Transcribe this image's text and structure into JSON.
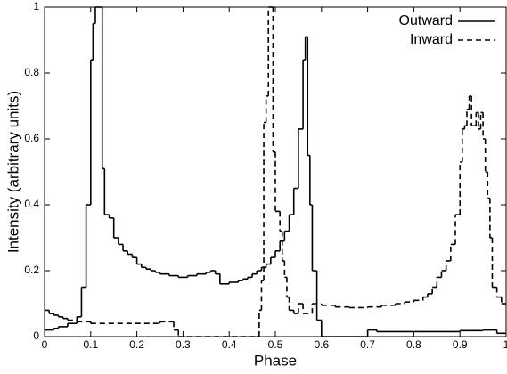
{
  "chart_data": {
    "type": "line",
    "step": true,
    "xlabel": "Phase",
    "ylabel": "Intensity (arbitrary units)",
    "xlim": [
      0,
      1
    ],
    "ylim": [
      0,
      1
    ],
    "xticks": [
      0,
      0.1,
      0.2,
      0.3,
      0.4,
      0.5,
      0.6,
      0.7,
      0.8,
      0.9,
      1
    ],
    "yticks": [
      0,
      0.2,
      0.4,
      0.6,
      0.8,
      1
    ],
    "legend": "upper-right",
    "series": [
      {
        "name": "Outward",
        "color": "#000000",
        "linestyle": "solid",
        "x": [
          0,
          0.02,
          0.03,
          0.05,
          0.07,
          0.08,
          0.09,
          0.1,
          0.105,
          0.11,
          0.125,
          0.13,
          0.14,
          0.15,
          0.16,
          0.17,
          0.18,
          0.19,
          0.2,
          0.21,
          0.22,
          0.23,
          0.24,
          0.25,
          0.27,
          0.29,
          0.31,
          0.33,
          0.35,
          0.36,
          0.37,
          0.38,
          0.4,
          0.42,
          0.43,
          0.44,
          0.45,
          0.46,
          0.47,
          0.48,
          0.49,
          0.5,
          0.51,
          0.52,
          0.53,
          0.54,
          0.55,
          0.56,
          0.565,
          0.57,
          0.575,
          0.58,
          0.59,
          0.6,
          0.7,
          0.72,
          0.8,
          0.9,
          0.95,
          0.98
        ],
        "values": [
          0.02,
          0.025,
          0.03,
          0.04,
          0.06,
          0.15,
          0.4,
          0.84,
          0.95,
          1.0,
          0.51,
          0.37,
          0.36,
          0.3,
          0.28,
          0.26,
          0.25,
          0.24,
          0.22,
          0.21,
          0.205,
          0.2,
          0.195,
          0.19,
          0.185,
          0.18,
          0.185,
          0.19,
          0.195,
          0.2,
          0.19,
          0.16,
          0.165,
          0.17,
          0.175,
          0.18,
          0.19,
          0.2,
          0.21,
          0.22,
          0.24,
          0.26,
          0.29,
          0.32,
          0.37,
          0.45,
          0.63,
          0.84,
          0.91,
          0.55,
          0.4,
          0.2,
          0.05,
          0.0,
          0.02,
          0.015,
          0.015,
          0.018,
          0.02,
          0.01
        ]
      },
      {
        "name": "Inward",
        "color": "#000000",
        "linestyle": "dashed",
        "x": [
          0,
          0.01,
          0.02,
          0.03,
          0.04,
          0.05,
          0.07,
          0.1,
          0.25,
          0.28,
          0.29,
          0.46,
          0.465,
          0.47,
          0.475,
          0.48,
          0.485,
          0.495,
          0.5,
          0.51,
          0.515,
          0.52,
          0.525,
          0.53,
          0.54,
          0.55,
          0.56,
          0.58,
          0.6,
          0.63,
          0.66,
          0.7,
          0.73,
          0.76,
          0.78,
          0.8,
          0.82,
          0.83,
          0.84,
          0.85,
          0.86,
          0.87,
          0.88,
          0.89,
          0.9,
          0.905,
          0.91,
          0.915,
          0.92,
          0.925,
          0.93,
          0.935,
          0.94,
          0.945,
          0.95,
          0.955,
          0.96,
          0.965,
          0.97,
          0.98,
          0.99
        ],
        "values": [
          0.08,
          0.07,
          0.065,
          0.06,
          0.055,
          0.05,
          0.045,
          0.04,
          0.045,
          0.02,
          0.0,
          0.0,
          0.08,
          0.17,
          0.65,
          0.73,
          1.0,
          0.56,
          0.38,
          0.32,
          0.23,
          0.18,
          0.12,
          0.08,
          0.07,
          0.1,
          0.07,
          0.1,
          0.095,
          0.09,
          0.088,
          0.09,
          0.095,
          0.1,
          0.105,
          0.11,
          0.12,
          0.13,
          0.15,
          0.18,
          0.2,
          0.23,
          0.28,
          0.37,
          0.53,
          0.63,
          0.64,
          0.69,
          0.73,
          0.64,
          0.64,
          0.68,
          0.63,
          0.68,
          0.6,
          0.5,
          0.42,
          0.3,
          0.15,
          0.12,
          0.1
        ]
      }
    ]
  }
}
